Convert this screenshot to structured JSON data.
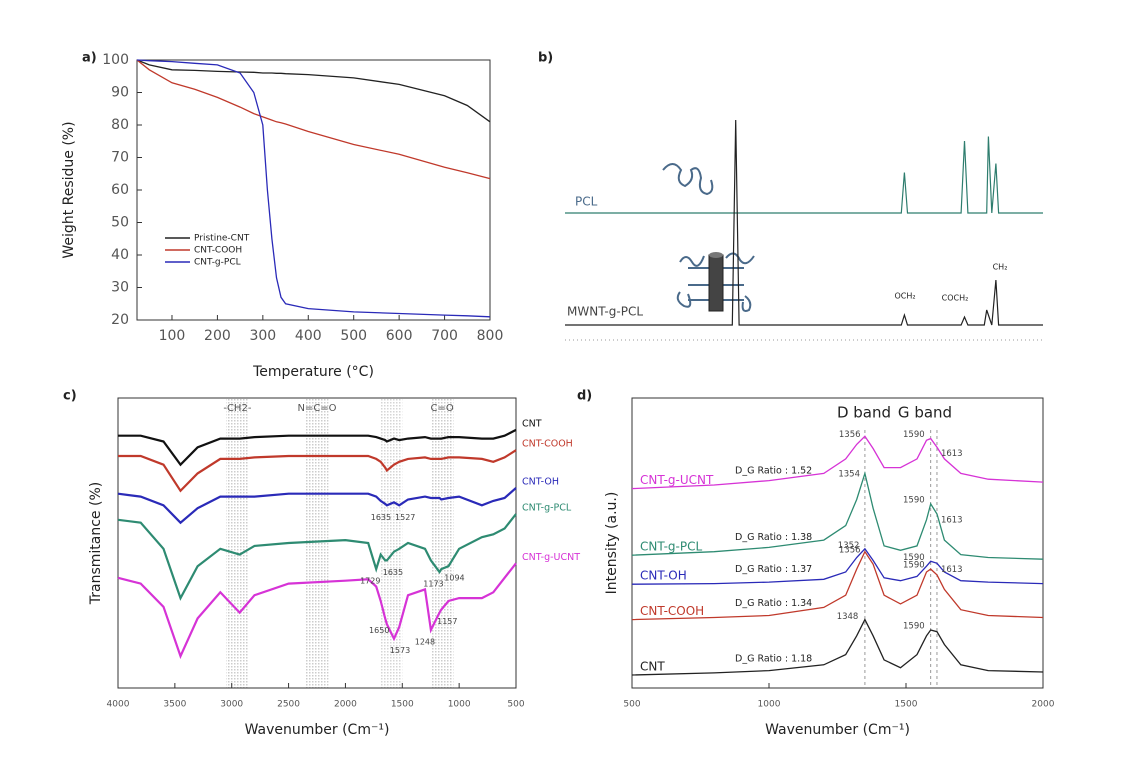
{
  "chart_data": [
    {
      "type": "line",
      "panel_label": "a)",
      "x_label": "Temperature (°C)",
      "y_label": "Weight Residue (%)",
      "x": [
        23,
        50,
        100,
        150,
        200,
        250,
        280,
        300,
        310,
        320,
        330,
        340,
        350,
        400,
        500,
        600,
        700,
        750,
        800
      ],
      "series": [
        {
          "name": "Pristine-CNT",
          "color": "#222222",
          "values": [
            100,
            98.5,
            97,
            96.8,
            96.5,
            96.3,
            96.2,
            96,
            96,
            96,
            95.9,
            95.9,
            95.8,
            95.5,
            94.5,
            92.5,
            89,
            86,
            81
          ]
        },
        {
          "name": "CNT-COOH",
          "color": "#c0392b",
          "values": [
            100,
            97,
            93,
            91,
            88.5,
            85.5,
            83.5,
            82.5,
            82,
            81.5,
            81,
            80.7,
            80.3,
            78,
            74,
            71,
            67,
            65.3,
            63.5
          ]
        },
        {
          "name": "CNT-g-PCL",
          "color": "#2a2ab8",
          "values": [
            100,
            99.8,
            99.5,
            99,
            98.5,
            96,
            90,
            80,
            60,
            45,
            33,
            27,
            25,
            23.5,
            22.5,
            22,
            21.5,
            21.3,
            21
          ]
        }
      ],
      "xlim": [
        23,
        800
      ],
      "xticks": [
        100,
        200,
        300,
        400,
        500,
        600,
        700,
        800
      ],
      "ylim": [
        20,
        100
      ],
      "yticks": [
        20,
        30,
        40,
        50,
        60,
        70,
        80,
        90,
        100
      ]
    },
    {
      "type": "spectrum",
      "panel_label": "b)",
      "x": [
        14,
        9.1,
        9.0,
        8.9,
        4.15,
        4.06,
        3.97,
        2.4,
        2.3,
        2.2,
        1.72,
        1.65,
        1.6,
        1.5,
        1.38,
        1.3,
        0
      ],
      "series": [
        {
          "name": "PCL",
          "color": "#2e7d6e",
          "values": [
            0,
            0,
            0,
            0,
            0,
            45,
            0,
            0,
            80,
            0,
            0,
            0,
            85,
            0,
            55,
            0,
            0
          ]
        },
        {
          "name": "MWNT-g-PCL",
          "color": "#222222",
          "values": [
            0,
            0,
            205,
            0,
            0,
            10,
            0,
            0,
            8,
            0,
            0,
            15,
            10,
            0,
            45,
            0,
            0
          ]
        }
      ],
      "xlim": [
        14,
        0
      ],
      "annotations": [
        "OCH₂",
        "COCH₂",
        "CH₂"
      ]
    },
    {
      "type": "line",
      "panel_label": "c)",
      "x_label": "Wavenumber (Cm⁻¹)",
      "y_label": "Transmitance (%)",
      "x": [
        4000,
        3800,
        3600,
        3450,
        3300,
        3100,
        2930,
        2800,
        2500,
        2000,
        1800,
        1729,
        1690,
        1650,
        1635,
        1573,
        1527,
        1450,
        1300,
        1248,
        1173,
        1157,
        1094,
        1000,
        800,
        700,
        600,
        500
      ],
      "series": [
        {
          "name": "CNT",
          "color": "#111111",
          "values": [
            87,
            87,
            85,
            77,
            83,
            86,
            86,
            86.5,
            87,
            87,
            87,
            86.5,
            86,
            85.5,
            85,
            86,
            85.5,
            86,
            86.5,
            86,
            86,
            86,
            86.5,
            86.5,
            86,
            86,
            87,
            89
          ]
        },
        {
          "name": "CNT-COOH",
          "color": "#c0392b",
          "values": [
            80,
            80,
            77,
            68,
            74,
            79,
            79,
            79.5,
            80,
            80,
            80,
            79,
            78,
            76,
            75,
            77,
            78,
            79,
            79.5,
            79,
            79,
            79,
            79.5,
            79.5,
            79,
            78,
            79.5,
            82
          ]
        },
        {
          "name": "CNT-OH",
          "color": "#2a2ab8",
          "values": [
            67,
            66,
            63,
            57,
            62,
            66,
            66,
            66,
            67,
            67,
            67,
            66,
            64.5,
            63.5,
            63,
            64,
            63,
            65,
            66,
            65.5,
            65.5,
            65,
            65.5,
            66,
            63,
            64.5,
            65.5,
            69
          ],
          "peaks": [
            1635,
            1527
          ]
        },
        {
          "name": "CNT-g-PCL",
          "color": "#2e8b72",
          "values": [
            58,
            57,
            48,
            31,
            42,
            48,
            46,
            49,
            50,
            51,
            50,
            41,
            46,
            44,
            44,
            47,
            48,
            50,
            48,
            44,
            40,
            41,
            42,
            48,
            52,
            53,
            55,
            60
          ],
          "peaks": [
            1729,
            1635,
            1173,
            1094
          ]
        },
        {
          "name": "CNT-g-UCNT",
          "color": "#d633d6",
          "values": [
            38,
            36,
            28,
            11,
            24,
            33,
            26,
            32,
            36,
            37,
            37.5,
            35,
            30,
            24,
            22,
            17,
            21,
            32,
            34,
            20,
            26,
            27,
            30,
            31,
            31,
            33,
            38,
            43
          ],
          "peaks": [
            1650,
            1573,
            1248,
            1157
          ]
        }
      ],
      "bands": [
        {
          "label": "-CH2-",
          "range": [
            3050,
            2850
          ]
        },
        {
          "label": "N=C=O",
          "range": [
            2350,
            2150
          ]
        },
        {
          "range": [
            1700,
            1500
          ]
        },
        {
          "label": "C=O",
          "range": [
            1250,
            1050
          ]
        }
      ],
      "xlim": [
        4000,
        500
      ],
      "xticks": [
        4000,
        3500,
        3000,
        2500,
        2000,
        1500,
        1000,
        500
      ],
      "ylim": [
        0,
        100
      ]
    },
    {
      "type": "line",
      "panel_label": "d)",
      "x_label": "Wavenumber (Cm⁻¹)",
      "y_label": "Intensity (a.u.)",
      "x": [
        500,
        800,
        1000,
        1200,
        1280,
        1320,
        1350,
        1380,
        1420,
        1480,
        1540,
        1575,
        1590,
        1613,
        1640,
        1700,
        1800,
        2000
      ],
      "series": [
        {
          "name": "CNT-g-UCNT",
          "color": "#d633d6",
          "ratio_label": "D_G Ratio : 1.52",
          "peaks": [
            1356,
            1590,
            1613
          ],
          "values": [
            68.75,
            70,
            71.5,
            74,
            79,
            84,
            86.8,
            82.6,
            76,
            76,
            79,
            85.4,
            86,
            83,
            79,
            74,
            72,
            71
          ]
        },
        {
          "name": "CNT-g-PCL",
          "color": "#2e8b72",
          "ratio_label": "D_G Ratio : 1.38",
          "peaks": [
            1354,
            1590,
            1613
          ],
          "values": [
            45.8,
            47,
            48.5,
            51,
            56,
            65,
            74,
            62,
            49,
            47.5,
            49,
            58,
            63.5,
            60,
            51,
            46,
            45,
            44.4
          ]
        },
        {
          "name": "CNT-OH",
          "color": "#2a2ab8",
          "ratio_label": "D_G Ratio : 1.37",
          "peaks": [
            1352,
            1590,
            1613
          ],
          "values": [
            35.8,
            36,
            36.5,
            37.5,
            40,
            45,
            48,
            44,
            38,
            37,
            38.5,
            42,
            43.7,
            43,
            40,
            37,
            36.5,
            36
          ]
        },
        {
          "name": "CNT-COOH",
          "color": "#c0392b",
          "ratio_label": "D_G Ratio : 1.34",
          "peaks": [
            1356,
            1590
          ],
          "values": [
            23.6,
            24.3,
            25,
            27.8,
            32,
            41,
            47,
            42.7,
            32,
            29,
            32,
            40,
            41,
            39,
            34,
            27,
            25,
            24.3
          ]
        },
        {
          "name": "CNT",
          "color": "#222222",
          "ratio_label": "D_G Ratio : 1.18",
          "peaks": [
            1348,
            1590
          ],
          "values": [
            4.5,
            5.2,
            6,
            8,
            11.5,
            18,
            23.6,
            18,
            9.7,
            7,
            11.5,
            18,
            20,
            19.4,
            15,
            8,
            6,
            5.5
          ]
        }
      ],
      "annotations": [
        "D band",
        "G band"
      ],
      "xlim": [
        500,
        2000
      ],
      "xticks": [
        500,
        1000,
        1500,
        2000
      ],
      "ylim": [
        0,
        100
      ]
    }
  ]
}
